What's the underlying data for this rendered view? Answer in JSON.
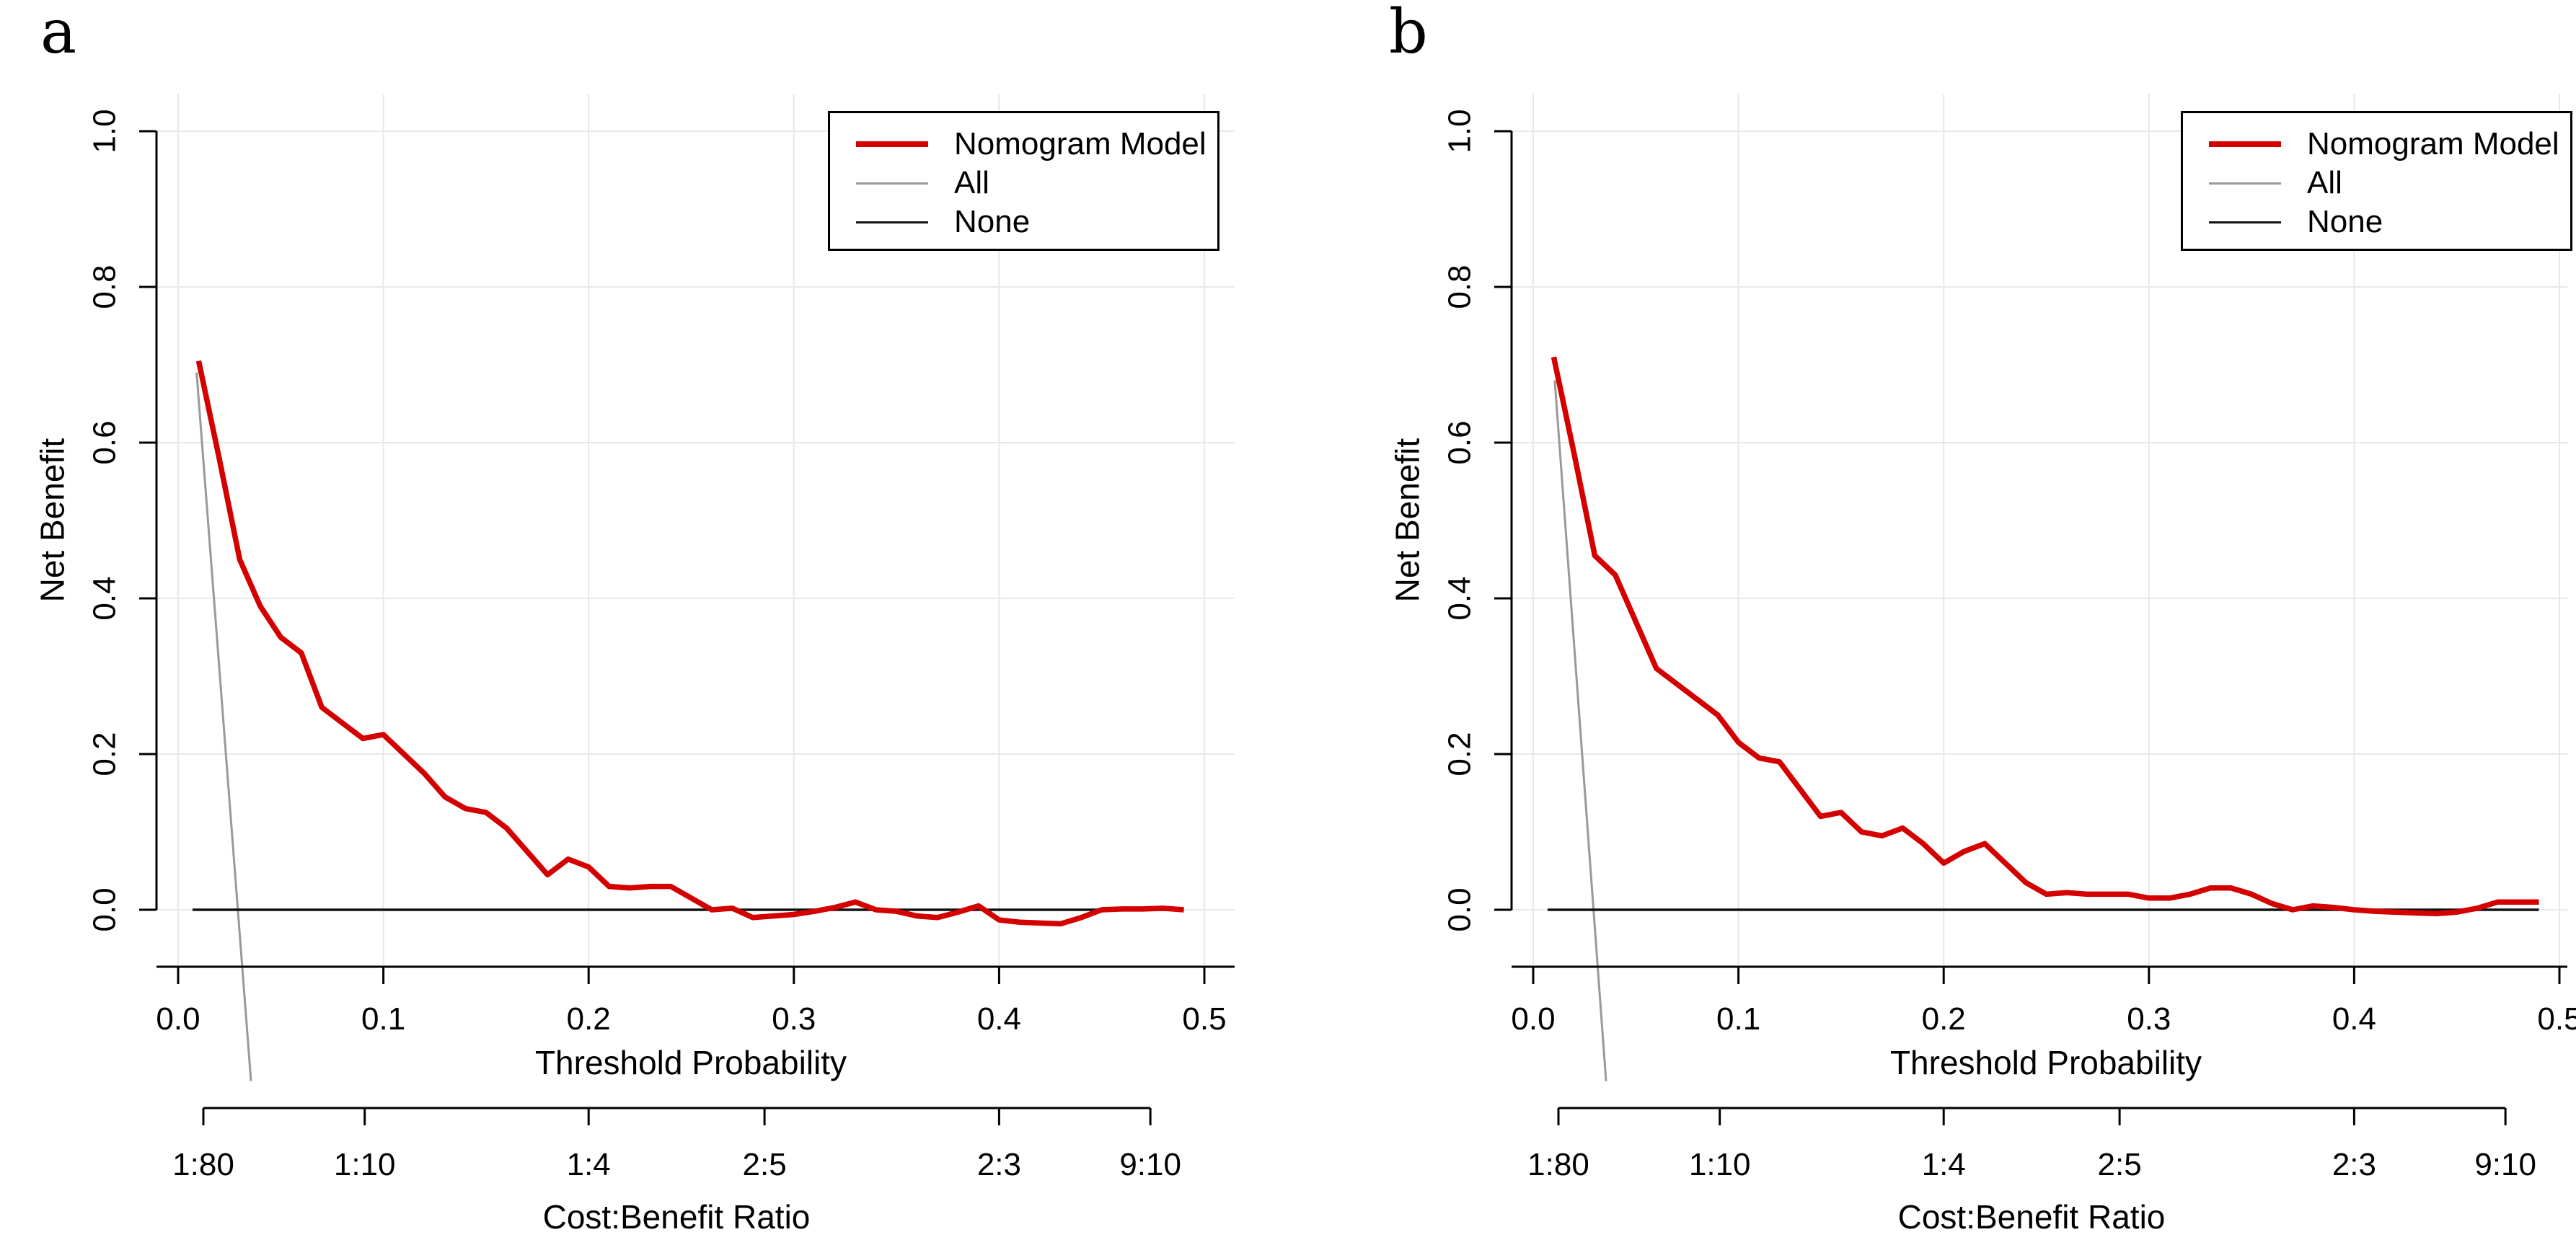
{
  "colors": {
    "model": "#d40000",
    "all": "#999999",
    "none": "#111111",
    "grid": "#e8e8e8",
    "axis": "#000000",
    "background": "#ffffff"
  },
  "panels": [
    {
      "label": "a",
      "axes": {
        "y_title": "Net Benefit",
        "x_title": "Threshold Probability",
        "x2_title": "Cost:Benefit Ratio"
      },
      "legend": {
        "items": [
          {
            "label": "Nomogram Model",
            "color": "#d40000",
            "line_width": 8
          },
          {
            "label": "All",
            "color": "#999999",
            "line_width": 3
          },
          {
            "label": "None",
            "color": "#111111",
            "line_width": 3
          }
        ]
      }
    },
    {
      "label": "b",
      "axes": {
        "y_title": "Net Benefit",
        "x_title": "Threshold Probability",
        "x2_title": "Cost:Benefit Ratio"
      },
      "legend": {
        "items": [
          {
            "label": "Nomogram Model",
            "color": "#d40000",
            "line_width": 8
          },
          {
            "label": "All",
            "color": "#999999",
            "line_width": 3
          },
          {
            "label": "None",
            "color": "#111111",
            "line_width": 3
          }
        ]
      }
    }
  ],
  "chart_data": [
    {
      "type": "line",
      "title": "a",
      "xlabel": "Threshold Probability",
      "ylabel": "Net Benefit",
      "x2label": "Cost:Benefit Ratio",
      "xlim": [
        0,
        0.5
      ],
      "ylim": [
        -0.08,
        1.0
      ],
      "grid": true,
      "legend_position": "top-right",
      "x_ticks": [
        0.0,
        0.1,
        0.2,
        0.3,
        0.4,
        0.5
      ],
      "x_tick_labels": [
        "0.0",
        "0.1",
        "0.2",
        "0.3",
        "0.4",
        "0.5"
      ],
      "y_ticks": [
        0.0,
        0.2,
        0.4,
        0.6,
        0.8,
        1.0
      ],
      "y_tick_labels": [
        "0.0",
        "0.2",
        "0.4",
        "0.6",
        "0.8",
        "1.0"
      ],
      "cb_ticks": [
        {
          "label": "1:80",
          "x": 0.0123
        },
        {
          "label": "1:10",
          "x": 0.0909
        },
        {
          "label": "1:4",
          "x": 0.2
        },
        {
          "label": "2:5",
          "x": 0.2857
        },
        {
          "label": "2:3",
          "x": 0.4
        },
        {
          "label": "9:10",
          "x": 0.4737
        }
      ],
      "thresholds": [
        0.01,
        0.02,
        0.03,
        0.04,
        0.05,
        0.06,
        0.07,
        0.08,
        0.09,
        0.1,
        0.11,
        0.12,
        0.13,
        0.14,
        0.15,
        0.16,
        0.17,
        0.18,
        0.19,
        0.2,
        0.21,
        0.22,
        0.23,
        0.24,
        0.25,
        0.26,
        0.27,
        0.28,
        0.29,
        0.3,
        0.31,
        0.32,
        0.33,
        0.34,
        0.35,
        0.36,
        0.37,
        0.38,
        0.39,
        0.4,
        0.41,
        0.42,
        0.43,
        0.44,
        0.45,
        0.46,
        0.47,
        0.48,
        0.49
      ],
      "series": [
        {
          "name": "Nomogram Model",
          "color": "#d40000",
          "width": 7.5,
          "y": [
            0.705,
            0.58,
            0.45,
            0.39,
            0.35,
            0.33,
            0.26,
            0.24,
            0.22,
            0.225,
            0.2,
            0.175,
            0.145,
            0.13,
            0.125,
            0.105,
            0.075,
            0.045,
            0.065,
            0.055,
            0.03,
            0.028,
            0.03,
            0.03,
            0.015,
            0.0,
            0.002,
            -0.01,
            -0.008,
            -0.006,
            -0.002,
            0.003,
            0.01,
            0.0,
            -0.002,
            -0.008,
            -0.01,
            -0.003,
            0.005,
            -0.013,
            -0.016,
            -0.017,
            -0.018,
            -0.01,
            0.0,
            0.001,
            0.001,
            0.002,
            0.0
          ]
        },
        {
          "name": "All",
          "color": "#999999",
          "width": 3,
          "x": [
            0.009,
            0.0355
          ],
          "y": [
            0.69,
            -0.22
          ]
        },
        {
          "name": "None",
          "color": "#111111",
          "width": 3.5,
          "x": [
            0.007,
            0.49
          ],
          "y": [
            0.0,
            0.0
          ]
        }
      ]
    },
    {
      "type": "line",
      "title": "b",
      "xlabel": "Threshold Probability",
      "ylabel": "Net Benefit",
      "x2label": "Cost:Benefit Ratio",
      "xlim": [
        0,
        0.5
      ],
      "ylim": [
        -0.08,
        1.0
      ],
      "grid": true,
      "legend_position": "top-right",
      "x_ticks": [
        0.0,
        0.1,
        0.2,
        0.3,
        0.4,
        0.5
      ],
      "x_tick_labels": [
        "0.0",
        "0.1",
        "0.2",
        "0.3",
        "0.4",
        "0.5"
      ],
      "y_ticks": [
        0.0,
        0.2,
        0.4,
        0.6,
        0.8,
        1.0
      ],
      "y_tick_labels": [
        "0.0",
        "0.2",
        "0.4",
        "0.6",
        "0.8",
        "1.0"
      ],
      "cb_ticks": [
        {
          "label": "1:80",
          "x": 0.0123
        },
        {
          "label": "1:10",
          "x": 0.0909
        },
        {
          "label": "1:4",
          "x": 0.2
        },
        {
          "label": "2:5",
          "x": 0.2857
        },
        {
          "label": "2:3",
          "x": 0.4
        },
        {
          "label": "9:10",
          "x": 0.4737
        }
      ],
      "thresholds": [
        0.01,
        0.02,
        0.03,
        0.04,
        0.05,
        0.06,
        0.07,
        0.08,
        0.09,
        0.1,
        0.11,
        0.12,
        0.13,
        0.14,
        0.15,
        0.16,
        0.17,
        0.18,
        0.19,
        0.2,
        0.21,
        0.22,
        0.23,
        0.24,
        0.25,
        0.26,
        0.27,
        0.28,
        0.29,
        0.3,
        0.31,
        0.32,
        0.33,
        0.34,
        0.35,
        0.36,
        0.37,
        0.38,
        0.39,
        0.4,
        0.41,
        0.42,
        0.43,
        0.44,
        0.45,
        0.46,
        0.47,
        0.48,
        0.49
      ],
      "series": [
        {
          "name": "Nomogram Model",
          "color": "#d40000",
          "width": 7.5,
          "y": [
            0.71,
            0.585,
            0.455,
            0.43,
            0.37,
            0.31,
            0.29,
            0.27,
            0.25,
            0.215,
            0.195,
            0.19,
            0.155,
            0.12,
            0.125,
            0.1,
            0.095,
            0.105,
            0.085,
            0.06,
            0.075,
            0.085,
            0.06,
            0.035,
            0.02,
            0.022,
            0.02,
            0.02,
            0.02,
            0.015,
            0.015,
            0.02,
            0.028,
            0.028,
            0.02,
            0.008,
            0.0,
            0.005,
            0.003,
            0.0,
            -0.002,
            -0.003,
            -0.004,
            -0.005,
            -0.003,
            0.002,
            0.01,
            0.01,
            0.01
          ]
        },
        {
          "name": "All",
          "color": "#999999",
          "width": 3,
          "x": [
            0.0105,
            0.0355
          ],
          "y": [
            0.68,
            -0.22
          ]
        },
        {
          "name": "None",
          "color": "#111111",
          "width": 3.5,
          "x": [
            0.007,
            0.49
          ],
          "y": [
            0.0,
            0.0
          ]
        }
      ]
    }
  ]
}
